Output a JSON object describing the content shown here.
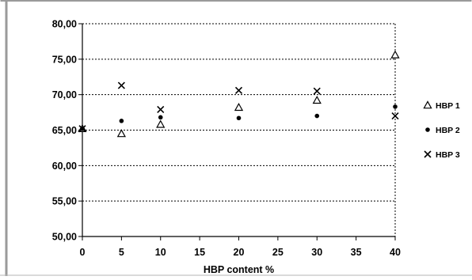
{
  "chart_data": {
    "type": "scatter",
    "xlabel": "HBP content %",
    "ylabel": "",
    "xlim": [
      0,
      40
    ],
    "ylim": [
      50,
      80
    ],
    "x_ticks": [
      "0",
      "5",
      "10",
      "15",
      "20",
      "25",
      "30",
      "35",
      "40"
    ],
    "y_ticks": [
      "50,00",
      "55,00",
      "60,00",
      "65,00",
      "70,00",
      "75,00",
      "80,00"
    ],
    "grid": "horizontal dashed, plus right border dashed",
    "legend_position": "right",
    "series": [
      {
        "name": "HBP 1",
        "marker": "triangle",
        "points": [
          [
            0,
            65.2
          ],
          [
            5,
            64.5
          ],
          [
            10,
            65.8
          ],
          [
            20,
            68.2
          ],
          [
            30,
            69.2
          ],
          [
            40,
            75.6
          ]
        ]
      },
      {
        "name": "HBP 2",
        "marker": "dot",
        "points": [
          [
            0,
            65.2
          ],
          [
            5,
            66.3
          ],
          [
            10,
            66.8
          ],
          [
            20,
            66.7
          ],
          [
            30,
            67.0
          ],
          [
            40,
            68.3
          ]
        ]
      },
      {
        "name": "HBP 3",
        "marker": "cross",
        "points": [
          [
            0,
            65.2
          ],
          [
            5,
            71.3
          ],
          [
            10,
            67.9
          ],
          [
            20,
            70.6
          ],
          [
            30,
            70.5
          ],
          [
            40,
            67.0
          ]
        ]
      }
    ]
  },
  "colors": {
    "frame_border": "#9a9a9a",
    "grid": "#000000",
    "marker": "#000000"
  }
}
